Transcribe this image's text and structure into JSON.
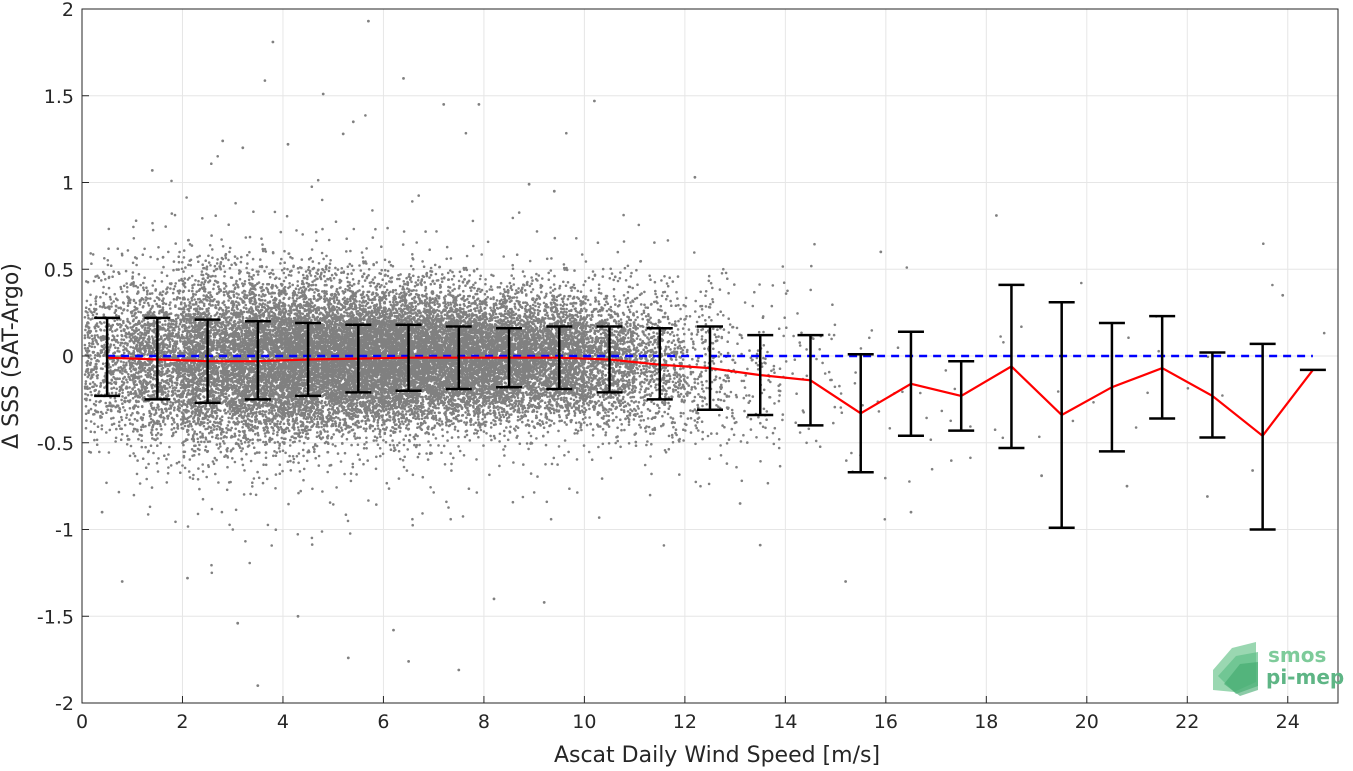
{
  "chart_data": {
    "type": "scatter",
    "title": "",
    "xlabel": "Ascat Daily Wind Speed [m/s]",
    "ylabel": "Δ SSS (SAT-Argo)",
    "xlim": [
      0,
      25
    ],
    "ylim": [
      -2,
      2
    ],
    "xticks": [
      0,
      2,
      4,
      6,
      8,
      10,
      12,
      14,
      16,
      18,
      20,
      22,
      24
    ],
    "yticks": [
      -2,
      -1.5,
      -1,
      -0.5,
      0,
      0.5,
      1,
      1.5,
      2
    ],
    "xtick_labels": [
      "0",
      "2",
      "4",
      "6",
      "8",
      "10",
      "12",
      "14",
      "16",
      "18",
      "20",
      "22",
      "24"
    ],
    "ytick_labels": [
      "-2",
      "-1.5",
      "-1",
      "-0.5",
      "0",
      "0.5",
      "1",
      "1.5",
      "2"
    ],
    "grid": true,
    "colors": {
      "scatter": "#808080",
      "mean_line": "#ff0000",
      "zero_line": "#0000ff",
      "error_bars": "#000000"
    },
    "zero_reference": {
      "y": 0,
      "style": "dashed"
    },
    "binned_stats": {
      "x": [
        0.5,
        1.5,
        2.5,
        3.5,
        4.5,
        5.5,
        6.5,
        7.5,
        8.5,
        9.5,
        10.5,
        11.5,
        12.5,
        13.5,
        14.5,
        15.5,
        16.5,
        17.5,
        18.5,
        19.5,
        20.5,
        21.5,
        22.5,
        23.5,
        24.5
      ],
      "mean": [
        -0.01,
        -0.02,
        -0.03,
        -0.03,
        -0.02,
        -0.015,
        -0.01,
        -0.01,
        -0.01,
        -0.01,
        -0.02,
        -0.05,
        -0.07,
        -0.11,
        -0.14,
        -0.33,
        -0.16,
        -0.23,
        -0.06,
        -0.34,
        -0.18,
        -0.07,
        -0.23,
        -0.46,
        -0.08
      ],
      "upper": [
        0.22,
        0.22,
        0.21,
        0.2,
        0.19,
        0.18,
        0.18,
        0.17,
        0.16,
        0.17,
        0.17,
        0.16,
        0.17,
        0.12,
        0.12,
        0.01,
        0.14,
        -0.03,
        0.41,
        0.31,
        0.19,
        0.23,
        0.02,
        0.07,
        null
      ],
      "lower": [
        -0.23,
        -0.25,
        -0.27,
        -0.25,
        -0.23,
        -0.21,
        -0.2,
        -0.19,
        -0.18,
        -0.19,
        -0.21,
        -0.25,
        -0.31,
        -0.34,
        -0.4,
        -0.67,
        -0.46,
        -0.43,
        -0.53,
        -0.99,
        -0.55,
        -0.36,
        -0.47,
        -1.0,
        null
      ]
    },
    "scatter_outliers": [
      [
        5.7,
        1.93
      ],
      [
        3.8,
        1.81
      ],
      [
        6.4,
        1.6
      ],
      [
        4.8,
        1.51
      ],
      [
        10.2,
        1.47
      ],
      [
        7.2,
        1.45
      ],
      [
        7.9,
        1.45
      ],
      [
        5.4,
        1.35
      ],
      [
        5.2,
        1.28
      ],
      [
        2.8,
        1.24
      ],
      [
        4.1,
        1.22
      ],
      [
        3.2,
        1.2
      ],
      [
        12.2,
        1.03
      ],
      [
        1.4,
        1.07
      ],
      [
        8.9,
        0.99
      ],
      [
        9.4,
        0.95
      ],
      [
        18.2,
        0.81
      ],
      [
        15.9,
        0.6
      ],
      [
        23.9,
        0.35
      ],
      [
        13.1,
        -0.85
      ],
      [
        16.5,
        -0.9
      ],
      [
        19.1,
        -0.69
      ],
      [
        22.4,
        -0.81
      ],
      [
        23.3,
        -0.66
      ],
      [
        0.8,
        -1.3
      ],
      [
        2.1,
        -1.28
      ],
      [
        3.1,
        -1.54
      ],
      [
        4.3,
        -1.5
      ],
      [
        6.2,
        -1.58
      ],
      [
        7.5,
        -1.81
      ],
      [
        3.5,
        -1.9
      ],
      [
        5.3,
        -1.74
      ],
      [
        6.5,
        -1.76
      ],
      [
        9.2,
        -1.42
      ],
      [
        8.2,
        -1.4
      ],
      [
        13.5,
        -1.09
      ],
      [
        15.2,
        -1.3
      ],
      [
        0.4,
        -0.9
      ],
      [
        20.8,
        -0.75
      ]
    ]
  },
  "logo": {
    "line1": "smos",
    "line2": "pi-mep"
  }
}
